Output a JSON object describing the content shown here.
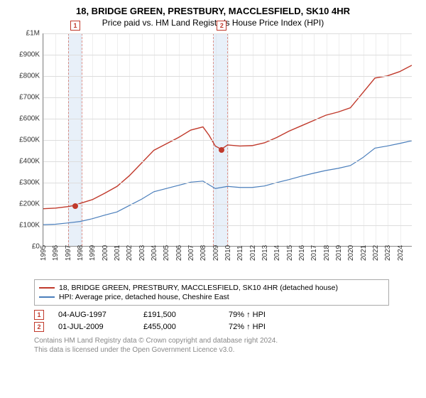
{
  "title_line1": "18, BRIDGE GREEN, PRESTBURY, MACCLESFIELD, SK10 4HR",
  "title_line2": "Price paid vs. HM Land Registry's House Price Index (HPI)",
  "chart": {
    "type": "line",
    "ylim": [
      0,
      1000000
    ],
    "ytick_step": 100000,
    "ytick_labels": [
      "£0",
      "£100K",
      "£200K",
      "£300K",
      "£400K",
      "£500K",
      "£600K",
      "£700K",
      "£800K",
      "£900K",
      "£1M"
    ],
    "xlim": [
      1995,
      2025
    ],
    "xtick_labels": [
      "1995",
      "1996",
      "1997",
      "1998",
      "1999",
      "2000",
      "2001",
      "2002",
      "2003",
      "2004",
      "2005",
      "2006",
      "2007",
      "2008",
      "2009",
      "2010",
      "2011",
      "2012",
      "2013",
      "2014",
      "2015",
      "2016",
      "2017",
      "2018",
      "2019",
      "2020",
      "2021",
      "2022",
      "2023",
      "2024"
    ],
    "background_color": "#ffffff",
    "grid_color": "#dddddd",
    "series": [
      {
        "name": "price_paid",
        "color": "#c0392b",
        "line_width": 1.4,
        "data": [
          [
            1995,
            175000
          ],
          [
            1996,
            178000
          ],
          [
            1997,
            185000
          ],
          [
            1997.6,
            191500
          ],
          [
            1998,
            200000
          ],
          [
            1999,
            218000
          ],
          [
            2000,
            248000
          ],
          [
            2001,
            280000
          ],
          [
            2002,
            330000
          ],
          [
            2003,
            390000
          ],
          [
            2004,
            450000
          ],
          [
            2005,
            480000
          ],
          [
            2006,
            510000
          ],
          [
            2007,
            545000
          ],
          [
            2008,
            560000
          ],
          [
            2008.5,
            520000
          ],
          [
            2009,
            470000
          ],
          [
            2009.5,
            455000
          ],
          [
            2010,
            475000
          ],
          [
            2011,
            470000
          ],
          [
            2012,
            472000
          ],
          [
            2013,
            485000
          ],
          [
            2014,
            510000
          ],
          [
            2015,
            540000
          ],
          [
            2016,
            565000
          ],
          [
            2017,
            590000
          ],
          [
            2018,
            615000
          ],
          [
            2019,
            630000
          ],
          [
            2020,
            650000
          ],
          [
            2021,
            720000
          ],
          [
            2022,
            790000
          ],
          [
            2023,
            800000
          ],
          [
            2024,
            820000
          ],
          [
            2025,
            850000
          ]
        ]
      },
      {
        "name": "hpi",
        "color": "#4a7ebb",
        "line_width": 1.2,
        "data": [
          [
            1995,
            100000
          ],
          [
            1996,
            102000
          ],
          [
            1997,
            108000
          ],
          [
            1998,
            115000
          ],
          [
            1999,
            128000
          ],
          [
            2000,
            145000
          ],
          [
            2001,
            160000
          ],
          [
            2002,
            190000
          ],
          [
            2003,
            220000
          ],
          [
            2004,
            255000
          ],
          [
            2005,
            270000
          ],
          [
            2006,
            285000
          ],
          [
            2007,
            300000
          ],
          [
            2008,
            305000
          ],
          [
            2009,
            270000
          ],
          [
            2010,
            280000
          ],
          [
            2011,
            275000
          ],
          [
            2012,
            275000
          ],
          [
            2013,
            282000
          ],
          [
            2014,
            298000
          ],
          [
            2015,
            312000
          ],
          [
            2016,
            328000
          ],
          [
            2017,
            342000
          ],
          [
            2018,
            355000
          ],
          [
            2019,
            365000
          ],
          [
            2020,
            378000
          ],
          [
            2021,
            415000
          ],
          [
            2022,
            460000
          ],
          [
            2023,
            470000
          ],
          [
            2024,
            482000
          ],
          [
            2025,
            495000
          ]
        ]
      }
    ],
    "event_bands": [
      {
        "id": "1",
        "x_start": 1997.0,
        "x_end": 1998.2,
        "marker_x": 1997.6
      },
      {
        "id": "2",
        "x_start": 2008.8,
        "x_end": 2010.0,
        "marker_x": 2009.5
      }
    ],
    "event_points": [
      {
        "series": "price_paid",
        "x": 1997.6,
        "y": 191500,
        "color": "#c0392b"
      },
      {
        "series": "price_paid",
        "x": 2009.5,
        "y": 455000,
        "color": "#c0392b"
      }
    ]
  },
  "legend": {
    "rows": [
      {
        "color": "#c0392b",
        "label": "18, BRIDGE GREEN, PRESTBURY, MACCLESFIELD, SK10 4HR (detached house)"
      },
      {
        "color": "#4a7ebb",
        "label": "HPI: Average price, detached house, Cheshire East"
      }
    ]
  },
  "events_table": {
    "rows": [
      {
        "id": "1",
        "date": "04-AUG-1997",
        "price": "£191,500",
        "note": "79% ↑ HPI"
      },
      {
        "id": "2",
        "date": "01-JUL-2009",
        "price": "£455,000",
        "note": "72% ↑ HPI"
      }
    ]
  },
  "footnote_line1": "Contains HM Land Registry data © Crown copyright and database right 2024.",
  "footnote_line2": "This data is licensed under the Open Government Licence v3.0."
}
